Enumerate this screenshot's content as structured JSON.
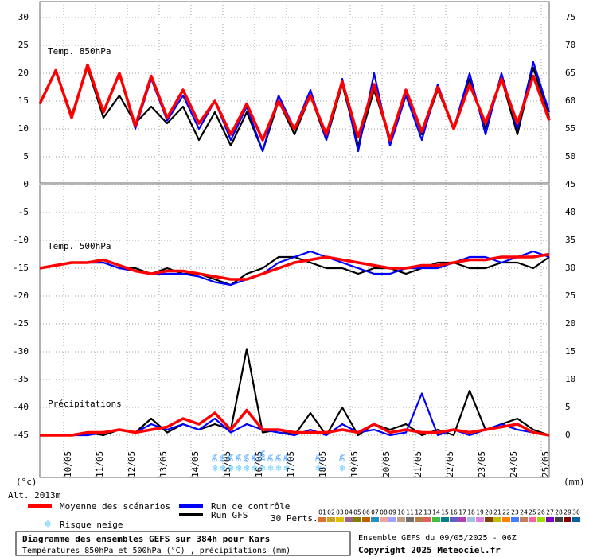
{
  "chart_data": [
    {
      "type": "line",
      "label": "Temp. 850hPa",
      "ylim": [
        0,
        30
      ],
      "yticks": [
        0,
        5,
        10,
        15,
        20,
        25,
        30
      ],
      "y2lim": [
        45,
        75
      ],
      "y2ticks": [
        50,
        55,
        60,
        65,
        70,
        75
      ],
      "xlim": [
        0,
        384
      ],
      "x": [
        0,
        12,
        24,
        36,
        48,
        60,
        72,
        84,
        96,
        108,
        120,
        132,
        144,
        156,
        168,
        180,
        192,
        204,
        216,
        228,
        240,
        252,
        264,
        276,
        288,
        300,
        312,
        324,
        336,
        348,
        360,
        372,
        384
      ],
      "series": [
        {
          "name": "Moyenne des scénarios",
          "color": "#ff0000",
          "values": [
            14.5,
            20.5,
            12,
            21.5,
            13,
            20,
            10.5,
            19.5,
            12,
            17,
            11,
            15,
            9,
            14.5,
            8,
            15,
            10,
            16,
            9,
            18.5,
            8.5,
            18,
            8,
            17,
            9.5,
            17.5,
            10,
            18,
            11,
            19,
            11,
            19.5,
            11.5
          ]
        },
        {
          "name": "Run de contrôle",
          "color": "#0000ff",
          "values": [
            14.5,
            20.5,
            12,
            21.5,
            13,
            20,
            10,
            19,
            11.5,
            16,
            10,
            15,
            8,
            14,
            6,
            16,
            10,
            17,
            8,
            19,
            6,
            20,
            7,
            16,
            8,
            18,
            10,
            20,
            9,
            20,
            10,
            22,
            13
          ]
        },
        {
          "name": "Run GFS",
          "color": "#000000",
          "values": [
            14.5,
            20.5,
            12.5,
            21,
            12,
            16,
            11,
            14,
            11,
            14,
            8,
            13,
            7,
            13,
            6,
            15,
            9,
            16,
            8,
            18,
            7,
            17,
            8,
            17,
            9,
            17,
            10,
            19,
            10,
            19,
            9,
            21,
            12
          ]
        }
      ]
    },
    {
      "type": "line",
      "label": "Temp. 500hPa",
      "label2": "Précipitations",
      "ylim": [
        -45,
        0
      ],
      "yticks": [
        -45,
        -40,
        -35,
        -30,
        -25,
        -20,
        -15,
        -10,
        -5
      ],
      "y2lim": [
        0,
        45
      ],
      "y2ticks": [
        0,
        5,
        10,
        15,
        20,
        25,
        30,
        35,
        40,
        45
      ],
      "xlim": [
        0,
        384
      ],
      "xticks": [
        {
          "value": 18,
          "label": "10/05"
        },
        {
          "value": 42,
          "label": "11/05"
        },
        {
          "value": 66,
          "label": "12/05"
        },
        {
          "value": 90,
          "label": "13/05"
        },
        {
          "value": 114,
          "label": "14/05"
        },
        {
          "value": 138,
          "label": "15/05"
        },
        {
          "value": 162,
          "label": "16/05"
        },
        {
          "value": 186,
          "label": "17/05"
        },
        {
          "value": 210,
          "label": "18/05"
        },
        {
          "value": 234,
          "label": "19/05"
        },
        {
          "value": 258,
          "label": "20/05"
        },
        {
          "value": 282,
          "label": "21/05"
        },
        {
          "value": 306,
          "label": "22/05"
        },
        {
          "value": 330,
          "label": "23/05"
        },
        {
          "value": 354,
          "label": "24/05"
        },
        {
          "value": 378,
          "label": "25/05"
        }
      ],
      "x": [
        0,
        12,
        24,
        36,
        48,
        60,
        72,
        84,
        96,
        108,
        120,
        132,
        144,
        156,
        168,
        180,
        192,
        204,
        216,
        228,
        240,
        252,
        264,
        276,
        288,
        300,
        312,
        324,
        336,
        348,
        360,
        372,
        384
      ],
      "series": [
        {
          "color": "#ff0000",
          "values": [
            -15,
            -14.5,
            -14,
            -14,
            -13.5,
            -14.5,
            -15.5,
            -16,
            -15.5,
            -15.5,
            -16,
            -16.5,
            -17,
            -17,
            -16,
            -15,
            -14,
            -13.5,
            -13,
            -13.5,
            -14,
            -14.5,
            -15,
            -15,
            -14.5,
            -14.5,
            -14,
            -13.5,
            -13.5,
            -13,
            -13,
            -13,
            -12.5
          ]
        },
        {
          "color": "#0000ff",
          "values": [
            -15,
            -14.5,
            -14,
            -14,
            -14,
            -15,
            -15.5,
            -16,
            -16,
            -16,
            -16.5,
            -17.5,
            -18,
            -17,
            -16,
            -14,
            -13,
            -12,
            -13,
            -14,
            -15,
            -16,
            -16,
            -15,
            -15,
            -15,
            -14,
            -13,
            -13,
            -14,
            -13,
            -12,
            -13
          ]
        },
        {
          "color": "#000000",
          "values": [
            -15,
            -14.5,
            -14,
            -14,
            -14,
            -15,
            -15,
            -16,
            -15,
            -16,
            -16,
            -17,
            -18,
            -16,
            -15,
            -13,
            -13,
            -14,
            -15,
            -15,
            -16,
            -15,
            -15,
            -16,
            -15,
            -14,
            -14,
            -15,
            -15,
            -14,
            -14,
            -15,
            -13
          ]
        },
        {
          "color": "#ff0000",
          "axis": "y2",
          "values": [
            0,
            0,
            0,
            0.5,
            0.5,
            1,
            0.5,
            1,
            1.5,
            3,
            2,
            4,
            1,
            4.5,
            1,
            1,
            0.5,
            0.5,
            0.5,
            1,
            0.5,
            2,
            0.5,
            1,
            0.5,
            0.5,
            1,
            0.5,
            1,
            1.5,
            2,
            0.5,
            0
          ]
        },
        {
          "color": "#0000ff",
          "axis": "y2",
          "values": [
            0,
            0,
            0,
            0,
            0.5,
            1,
            0.5,
            2,
            1,
            2,
            1,
            3,
            0.5,
            2,
            1,
            0.5,
            0,
            1,
            0,
            2,
            0.5,
            1,
            0,
            0.5,
            7.5,
            0,
            1,
            0,
            1,
            2,
            1,
            0.5,
            0
          ]
        },
        {
          "color": "#000000",
          "axis": "y2",
          "values": [
            0,
            0,
            0,
            0.5,
            0,
            1,
            0.5,
            3,
            0.5,
            2,
            1,
            2,
            1,
            15.5,
            0.5,
            1,
            0,
            4,
            0,
            5,
            0,
            2,
            1,
            2,
            0,
            1,
            0,
            8,
            1,
            2,
            3,
            1,
            0
          ]
        }
      ],
      "snow_risk": {
        "x": [
          132,
          138,
          144,
          150,
          156,
          162,
          168,
          174,
          180,
          186,
          210,
          228
        ],
        "labels": [
          "3%",
          "6%",
          "3%",
          "3%",
          "6%",
          "3%",
          "10%",
          "3%",
          "3%",
          "3%",
          "3%",
          "3%"
        ]
      }
    }
  ],
  "axis_units": {
    "left": "(°c)",
    "right": "(mm)"
  },
  "altitude": "Alt. 2013m",
  "legend": {
    "snow": "Risque neige",
    "members_label": "30 Perts.",
    "members": [
      {
        "label": "01",
        "color": "#e07030"
      },
      {
        "label": "02",
        "color": "#d0a020"
      },
      {
        "label": "03",
        "color": "#e0c000"
      },
      {
        "label": "04",
        "color": "#a06090"
      },
      {
        "label": "05",
        "color": "#808000"
      },
      {
        "label": "06",
        "color": "#c06000"
      },
      {
        "label": "07",
        "color": "#2090c0"
      },
      {
        "label": "08",
        "color": "#f0a0a0"
      },
      {
        "label": "09",
        "color": "#a0a0ff"
      },
      {
        "label": "10",
        "color": "#c0a080"
      },
      {
        "label": "11",
        "color": "#707070"
      },
      {
        "label": "12",
        "color": "#b08040"
      },
      {
        "label": "13",
        "color": "#e06060"
      },
      {
        "label": "14",
        "color": "#40c040"
      },
      {
        "label": "15",
        "color": "#008080"
      },
      {
        "label": "16",
        "color": "#6060c0"
      },
      {
        "label": "17",
        "color": "#b040b0"
      },
      {
        "label": "18",
        "color": "#a0c0e0"
      },
      {
        "label": "19",
        "color": "#e080e0"
      },
      {
        "label": "20",
        "color": "#804000"
      },
      {
        "label": "21",
        "color": "#c0c000"
      },
      {
        "label": "22",
        "color": "#ff8000"
      },
      {
        "label": "23",
        "color": "#4080ff"
      },
      {
        "label": "24",
        "color": "#c08060"
      },
      {
        "label": "25",
        "color": "#ff60a0"
      },
      {
        "label": "26",
        "color": "#a0e000"
      },
      {
        "label": "27",
        "color": "#8000c0"
      },
      {
        "label": "28",
        "color": "#404040"
      },
      {
        "label": "29",
        "color": "#800000"
      },
      {
        "label": "30",
        "color": "#0060a0"
      }
    ]
  },
  "footer": {
    "title": "Diagramme des ensembles GEFS sur 384h pour Kars",
    "subtitle": "Températures 850hPa et 500hPa (°C) , précipitations (mm)",
    "run": "Ensemble GEFS du 09/05/2025 - 06Z",
    "copyright": "Copyright 2025 Meteociel.fr"
  }
}
